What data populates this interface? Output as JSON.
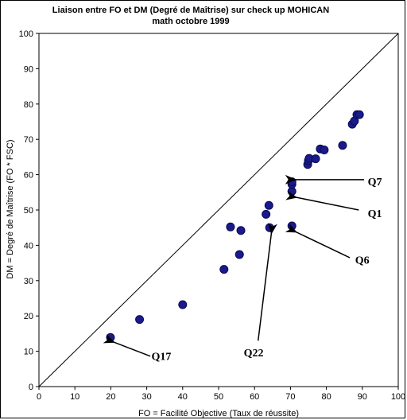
{
  "chart_data": {
    "type": "scatter",
    "title_line1": "Liaison entre FO et DM (Degré de Maîtrise) sur check up MOHICAN",
    "title_line2": "math octobre 1999",
    "xlabel": "FO = Facilité Objective (Taux de réussite)",
    "ylabel": "DM = Degré de Maîtrise (FO * FSC)",
    "xlim": [
      0,
      100
    ],
    "ylim": [
      0,
      100
    ],
    "xticks": [
      0,
      10,
      20,
      30,
      40,
      50,
      60,
      70,
      80,
      90,
      100
    ],
    "yticks": [
      0,
      10,
      20,
      30,
      40,
      50,
      60,
      70,
      80,
      90,
      100
    ],
    "grid": false,
    "reference_line": [
      [
        0,
        0
      ],
      [
        100,
        100
      ]
    ],
    "marker_color": "#1a1a8c",
    "points": [
      {
        "x": 19.9,
        "y": 13.9
      },
      {
        "x": 28.0,
        "y": 19.0
      },
      {
        "x": 40.0,
        "y": 23.2
      },
      {
        "x": 51.5,
        "y": 33.2
      },
      {
        "x": 53.3,
        "y": 45.2
      },
      {
        "x": 55.8,
        "y": 37.4
      },
      {
        "x": 56.2,
        "y": 44.2
      },
      {
        "x": 63.2,
        "y": 48.8
      },
      {
        "x": 64.0,
        "y": 51.3
      },
      {
        "x": 64.2,
        "y": 45.0
      },
      {
        "x": 70.4,
        "y": 45.5
      },
      {
        "x": 70.4,
        "y": 55.3
      },
      {
        "x": 70.4,
        "y": 57.3
      },
      {
        "x": 70.4,
        "y": 58.0
      },
      {
        "x": 74.8,
        "y": 62.9
      },
      {
        "x": 75.0,
        "y": 64.0
      },
      {
        "x": 75.2,
        "y": 64.6
      },
      {
        "x": 77.0,
        "y": 64.5
      },
      {
        "x": 78.3,
        "y": 67.3
      },
      {
        "x": 79.4,
        "y": 67.0
      },
      {
        "x": 84.5,
        "y": 68.3
      },
      {
        "x": 87.2,
        "y": 74.3
      },
      {
        "x": 87.8,
        "y": 75.2
      },
      {
        "x": 88.5,
        "y": 77.0
      },
      {
        "x": 89.2,
        "y": 77.0
      }
    ],
    "annotations": [
      {
        "label": "Q7",
        "text_x": 91.5,
        "text_y": 57.0,
        "arrow_to": [
          71.2,
          58.6
        ],
        "arrow_from": [
          90.5,
          58.6
        ]
      },
      {
        "label": "Q1",
        "text_x": 91.5,
        "text_y": 48.0,
        "arrow_to": [
          71.5,
          53.6
        ],
        "arrow_from": [
          89.0,
          50.0
        ]
      },
      {
        "label": "Q6",
        "text_x": 88.0,
        "text_y": 34.8,
        "arrow_to": [
          71.5,
          43.8
        ],
        "arrow_from": [
          86.5,
          36.5
        ]
      },
      {
        "label": "Q22",
        "text_x": 57.0,
        "text_y": 8.6,
        "arrow_to": [
          64.7,
          43.5
        ],
        "arrow_from": [
          61.0,
          13.0
        ]
      },
      {
        "label": "Q17",
        "text_x": 31.3,
        "text_y": 7.6,
        "arrow_to": [
          20.8,
          12.6
        ],
        "arrow_from": [
          31.0,
          8.6
        ]
      }
    ]
  }
}
